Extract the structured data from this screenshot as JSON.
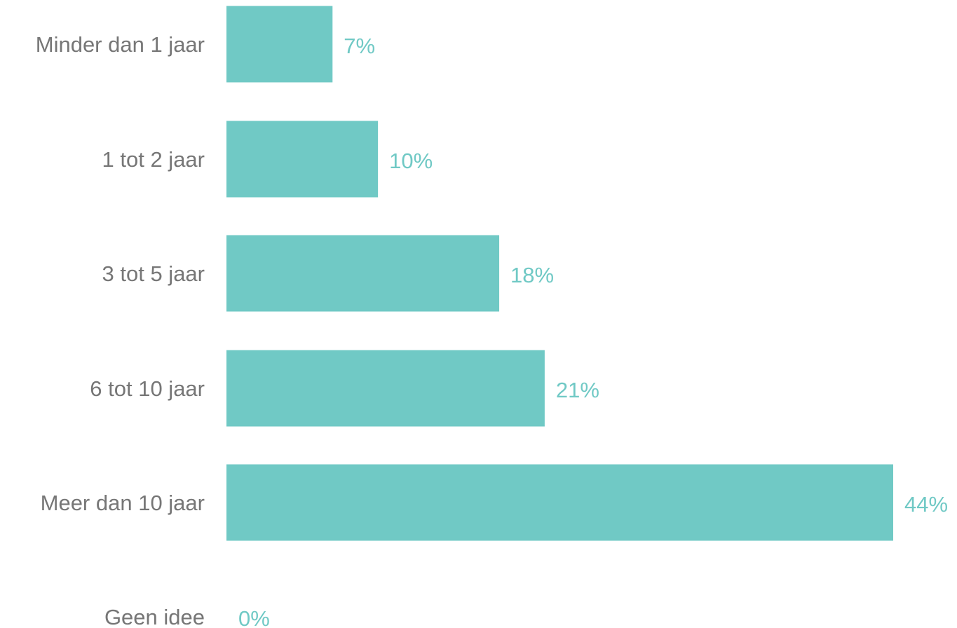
{
  "chart_data": {
    "type": "bar",
    "orientation": "horizontal",
    "categories": [
      "Minder dan 1 jaar",
      "1 tot 2 jaar",
      "3 tot 5 jaar",
      "6 tot 10 jaar",
      "Meer dan 10 jaar",
      "Geen idee"
    ],
    "values": [
      7,
      10,
      18,
      21,
      44,
      0
    ],
    "value_labels": [
      "7%",
      "10%",
      "18%",
      "21%",
      "44%",
      "0%"
    ],
    "unit": "%",
    "title": "",
    "xlabel": "",
    "ylabel": "",
    "grid": false,
    "legend": "none"
  },
  "colors": {
    "bar": "#70c9c5",
    "value_label": "#70c9c5",
    "category_label": "#767676",
    "background": "#ffffff"
  }
}
